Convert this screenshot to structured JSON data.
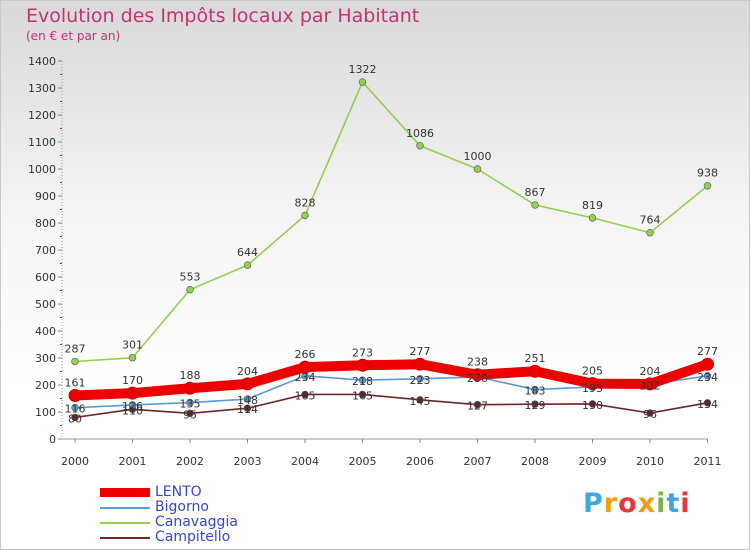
{
  "title": "Evolution des Impôts locaux par Habitant",
  "subtitle": "(en € et par an)",
  "logo": {
    "text": "Proxiti",
    "colors": [
      "#3da7e0",
      "#f39c12",
      "#e53935",
      "#f39c12",
      "#7cb342",
      "#3da7e0",
      "#e53935"
    ]
  },
  "chart_data": {
    "type": "line",
    "title": "Evolution des Impôts locaux par Habitant",
    "subtitle": "(en € et par an)",
    "x": [
      "2000",
      "2001",
      "2002",
      "2003",
      "2004",
      "2005",
      "2006",
      "2007",
      "2008",
      "2009",
      "2010",
      "2011"
    ],
    "ylim": [
      0,
      1400
    ],
    "yticks": [
      "0",
      "100",
      "200",
      "300",
      "400",
      "500",
      "600",
      "700",
      "800",
      "900",
      "1000",
      "1100",
      "1200",
      "1300",
      "1400"
    ],
    "grid": false,
    "legend_position": "bottom-left",
    "series": [
      {
        "name": "LENTO",
        "color": "#ee0000",
        "values": [
          161,
          170,
          188,
          204,
          266,
          273,
          277,
          238,
          251,
          205,
          204,
          277
        ],
        "labels": [
          "161",
          "170",
          "188",
          "204",
          "266",
          "273",
          "277",
          "238",
          "251",
          "205",
          "204",
          "277"
        ]
      },
      {
        "name": "Bigorno",
        "color": "#5b9bd5",
        "values": [
          116,
          126,
          135,
          148,
          234,
          218,
          223,
          230,
          183,
          193,
          202,
          234
        ],
        "labels": [
          "116",
          "126",
          "135",
          "148",
          "234",
          "218",
          "223",
          "230",
          "183",
          "193",
          "202",
          "234"
        ]
      },
      {
        "name": "Canavaggia",
        "color": "#92d050",
        "values": [
          287,
          301,
          553,
          644,
          828,
          1322,
          1086,
          1000,
          867,
          819,
          764,
          938
        ],
        "labels": [
          "287",
          "301",
          "553",
          "644",
          "828",
          "1322",
          "1086",
          "1000",
          "867",
          "819",
          "764",
          "938"
        ]
      },
      {
        "name": "Campitello",
        "color": "#6e2727",
        "values": [
          80,
          110,
          95,
          114,
          165,
          165,
          145,
          127,
          129,
          130,
          96,
          134
        ],
        "labels": [
          "80",
          "110",
          "95",
          "114",
          "165",
          "165",
          "145",
          "127",
          "129",
          "130",
          "96",
          "134"
        ]
      }
    ]
  }
}
